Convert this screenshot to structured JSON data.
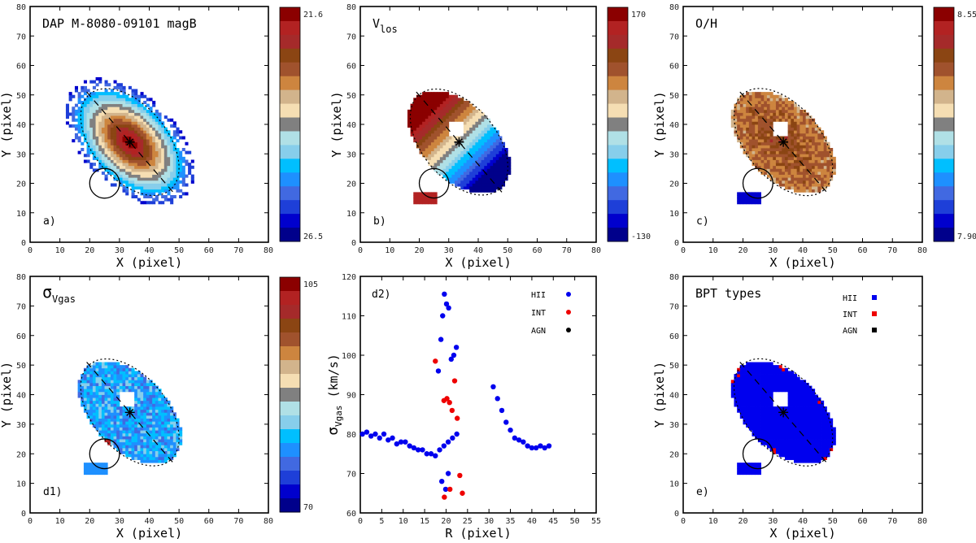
{
  "figure": {
    "colors": {
      "scale": [
        "#00008B",
        "#0000CD",
        "#1E3FD8",
        "#4169E1",
        "#1E90FF",
        "#00BFFF",
        "#87CEEB",
        "#B0E0E6",
        "#808080",
        "#F5DEB3",
        "#D2B48C",
        "#CD853F",
        "#A0522D",
        "#8B4513",
        "#A52A2A",
        "#B22222",
        "#8B0000"
      ],
      "hii": "#0000EE",
      "int": "#EE0000",
      "agn": "#000000"
    },
    "common": {
      "xlabel": "X  (pixel)",
      "ylabel": "Y  (pixel)",
      "ticks": [
        "0",
        "10",
        "20",
        "30",
        "40",
        "50",
        "60",
        "70",
        "80"
      ]
    },
    "panels": [
      {
        "id": "a",
        "title": "DAP M-8080-09101  magB",
        "label": "a)",
        "cb_top": "21.6",
        "cb_bottom": "26.5"
      },
      {
        "id": "b",
        "title": "V",
        "title_sub": "los",
        "label": "b)",
        "cb_top": "170",
        "cb_bottom": "-130"
      },
      {
        "id": "c",
        "title": "O/H",
        "label": "c)",
        "cb_top": "8.55",
        "cb_bottom": "7.90"
      },
      {
        "id": "d1",
        "title": "σ",
        "title_sub": "Vgas",
        "label": "d1)",
        "cb_top": "105",
        "cb_bottom": "70"
      },
      {
        "id": "e",
        "title": "BPT types",
        "label": "e)"
      }
    ],
    "legend": [
      "HII",
      "INT",
      "AGN"
    ]
  },
  "chart_data": [
    {
      "type": "heatmap",
      "title": "DAP M-8080-09101  magB",
      "panel": "a)",
      "xlabel": "X  (pixel)",
      "ylabel": "Y  (pixel)",
      "xlim": [
        0,
        80
      ],
      "ylim": [
        0,
        80
      ],
      "colorbar": [
        21.6,
        26.5
      ],
      "center": [
        33.5,
        34
      ],
      "pa_deg": -50
    },
    {
      "type": "heatmap",
      "title": "V_los",
      "panel": "b)",
      "xlabel": "X  (pixel)",
      "ylabel": "Y  (pixel)",
      "xlim": [
        0,
        80
      ],
      "ylim": [
        0,
        80
      ],
      "colorbar": [
        -130,
        170
      ]
    },
    {
      "type": "heatmap",
      "title": "O/H",
      "panel": "c)",
      "xlabel": "X  (pixel)",
      "ylabel": "Y  (pixel)",
      "xlim": [
        0,
        80
      ],
      "ylim": [
        0,
        80
      ],
      "colorbar": [
        7.9,
        8.55
      ]
    },
    {
      "type": "heatmap",
      "title": "σ_Vgas",
      "panel": "d1)",
      "xlabel": "X  (pixel)",
      "ylabel": "Y  (pixel)",
      "xlim": [
        0,
        80
      ],
      "ylim": [
        0,
        80
      ],
      "colorbar": [
        70,
        105
      ]
    },
    {
      "type": "scatter",
      "title": "",
      "panel": "d2)",
      "xlabel": "R  (pixel)",
      "ylabel": "σ_Vgas  (km/s)",
      "xlim": [
        0,
        55
      ],
      "ylim": [
        60,
        120
      ],
      "xticks": [
        "0",
        "5",
        "10",
        "15",
        "20",
        "25",
        "30",
        "35",
        "40",
        "45",
        "50",
        "55"
      ],
      "yticks": [
        "60",
        "70",
        "80",
        "90",
        "100",
        "110",
        "120"
      ],
      "legend": [
        "HII",
        "INT",
        "AGN"
      ],
      "series": [
        {
          "name": "HII",
          "color": "#0000EE",
          "x": [
            0.5,
            1.5,
            2.5,
            3.5,
            4.5,
            5.5,
            6.5,
            7.5,
            8.5,
            9.5,
            10.5,
            11.5,
            12.5,
            13.5,
            14.5,
            15.5,
            16.5,
            17.5,
            18.5,
            19.5,
            20.5,
            21.5,
            22.5,
            18.2,
            18.8,
            19.2,
            19.6,
            20.1,
            20.6,
            21.2,
            21.8,
            22.4,
            19.0,
            19.9,
            20.5,
            31,
            32,
            33,
            34,
            35,
            36,
            37,
            38,
            39,
            40,
            41,
            42,
            43,
            44
          ],
          "y": [
            80,
            80.5,
            79.5,
            80,
            79,
            80,
            78.5,
            79,
            77.5,
            78,
            78,
            77,
            76.5,
            76,
            76,
            75,
            75,
            74.5,
            76,
            77,
            78,
            79,
            80,
            96,
            104,
            110,
            115.5,
            113,
            112,
            99,
            100,
            102,
            68,
            66,
            70,
            92,
            89,
            86,
            83,
            81,
            79,
            78.5,
            78,
            77,
            76.5,
            76.5,
            77,
            76.5,
            77
          ]
        },
        {
          "name": "INT",
          "color": "#EE0000",
          "x": [
            17.5,
            19.5,
            20.2,
            20.8,
            21.4,
            22,
            22.6,
            23.2,
            19.6,
            20.9,
            23.8
          ],
          "y": [
            98.5,
            88.5,
            89,
            88,
            86,
            93.5,
            84,
            69.5,
            64,
            66,
            65
          ]
        },
        {
          "name": "AGN",
          "color": "#000000",
          "x": [],
          "y": []
        }
      ]
    },
    {
      "type": "heatmap",
      "title": "BPT types",
      "panel": "e)",
      "xlabel": "X  (pixel)",
      "ylabel": "Y  (pixel)",
      "xlim": [
        0,
        80
      ],
      "ylim": [
        0,
        80
      ],
      "legend": [
        "HII",
        "INT",
        "AGN"
      ]
    }
  ]
}
